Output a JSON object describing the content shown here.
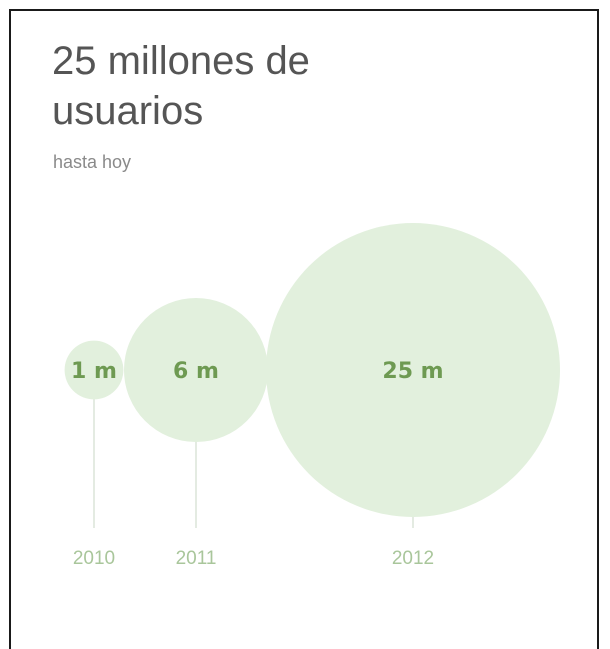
{
  "header": {
    "title": "25 millones de usuarios",
    "subtitle": "hasta hoy"
  },
  "chart_data": {
    "type": "bubble",
    "categories": [
      "2010",
      "2011",
      "2012"
    ],
    "values": [
      1,
      6,
      25
    ],
    "labels": [
      "1 m",
      "6 m",
      "25 m"
    ],
    "title": "25 millones de usuarios",
    "subtitle": "hasta hoy",
    "xlabel": "",
    "ylabel": "",
    "grid": false
  },
  "colors": {
    "bubble_fill": "#e2f0dd",
    "value_label": "#6e9a52",
    "stem": "#e4ebe2",
    "year_label": "#a9c69b",
    "title_text": "#555555",
    "subtitle_text": "#8a8a8a"
  }
}
